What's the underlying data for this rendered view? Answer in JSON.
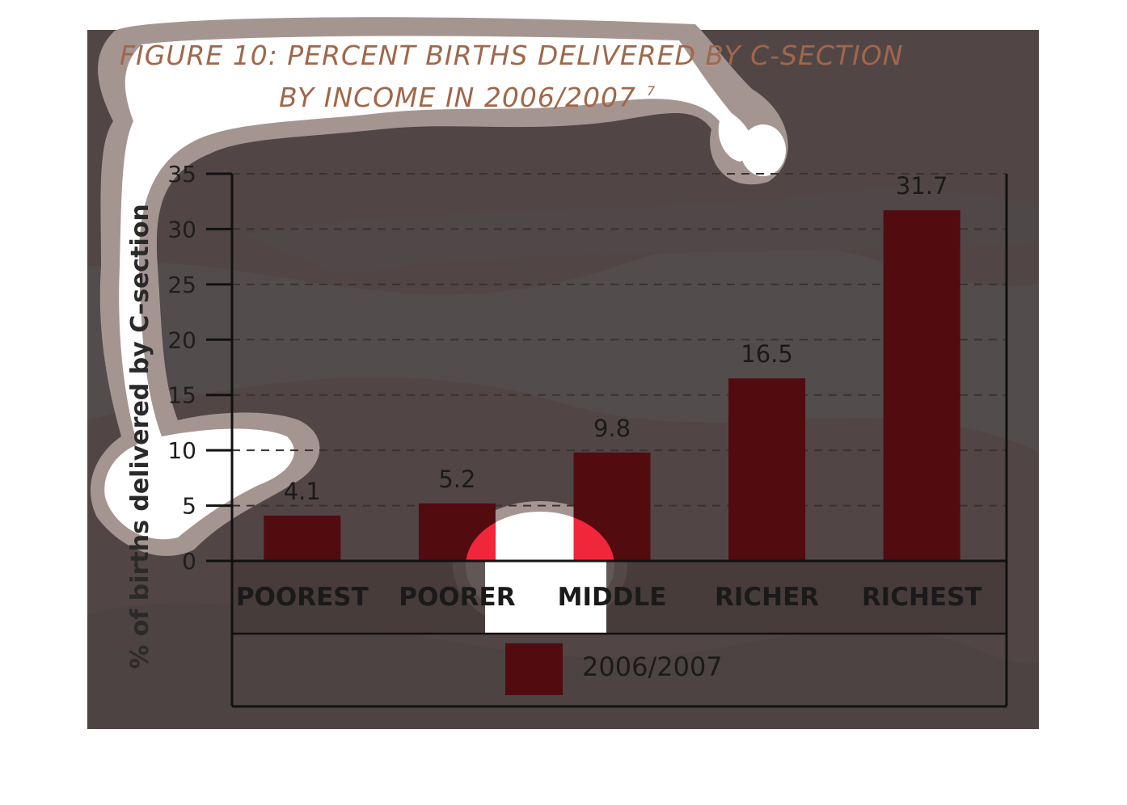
{
  "chart_data": {
    "type": "bar",
    "title_line1": "FIGURE 10: PERCENT BIRTHS DELIVERED BY C-SECTION",
    "title_line2": "BY INCOME IN 2006/2007",
    "title_superscript": "7",
    "ylabel": "% of births delivered by C–section",
    "ylim": [
      0,
      35
    ],
    "yticks": [
      0,
      5,
      10,
      15,
      20,
      25,
      30,
      35
    ],
    "grid": true,
    "categories": [
      "POOREST",
      "POORER",
      "MIDDLE",
      "RICHER",
      "RICHEST"
    ],
    "series": [
      {
        "name": "2006/2007",
        "values": [
          4.1,
          5.2,
          9.8,
          16.5,
          31.7
        ]
      }
    ],
    "value_labels": [
      "4.1",
      "5.2",
      "9.8",
      "16.5",
      "31.7"
    ],
    "legend_position": "bottom",
    "colors": {
      "bar": "#520b0f",
      "background": "#514645",
      "title": "#a0674a",
      "category_band": "#453b38"
    }
  }
}
